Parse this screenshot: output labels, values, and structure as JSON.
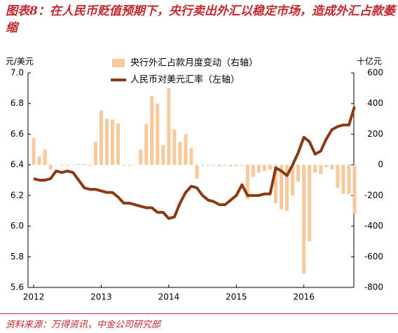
{
  "chart_data": {
    "type": "bar-line",
    "title": "图表8：在人民币贬值预期下，央行卖出外汇以稳定市场，造成外汇占款萎缩",
    "y_label": "元/美元",
    "y2_label": "十亿元",
    "source": "资料来源：万得资讯，中金公司研究部",
    "categories": [
      "2012",
      null,
      null,
      null,
      null,
      null,
      null,
      null,
      null,
      null,
      null,
      null,
      "2013",
      null,
      null,
      null,
      null,
      null,
      null,
      null,
      null,
      null,
      null,
      null,
      "2014",
      null,
      null,
      null,
      null,
      null,
      null,
      null,
      null,
      null,
      null,
      null,
      "2015",
      null,
      null,
      null,
      null,
      null,
      null,
      null,
      null,
      null,
      null,
      null,
      "2016",
      null,
      null,
      null,
      null,
      null,
      null,
      null,
      null,
      null
    ],
    "ylim": [
      5.6,
      7.0
    ],
    "yticks": [
      {
        "value": 7.0,
        "label": "7.0"
      },
      6.8,
      6.6,
      6.4,
      6.2,
      {
        "value": 6.0,
        "label": "6.0"
      },
      5.8,
      5.6
    ],
    "y2lim": [
      -800,
      600
    ],
    "y2ticks": [
      600,
      400,
      200,
      0,
      -200,
      -400,
      -600,
      -800
    ],
    "legend": "top-left",
    "series": [
      {
        "name": "央行外汇占款月度变动（右轴）",
        "type": "bar",
        "axis": "y2",
        "color": "#f9c89b",
        "values": [
          175,
          55,
          100,
          -30,
          0,
          -5,
          -5,
          -2,
          5,
          5,
          -5,
          150,
          355,
          300,
          295,
          270,
          -5,
          -5,
          0,
          100,
          265,
          450,
          400,
          130,
          500,
          230,
          150,
          200,
          110,
          -90,
          -5,
          -5,
          -5,
          -10,
          -5,
          -10,
          -10,
          -5,
          -225,
          -80,
          -50,
          -40,
          -30,
          -250,
          -290,
          -300,
          -200,
          -110,
          -710,
          -500,
          -50,
          -60,
          -15,
          -30,
          -150,
          -190,
          -190,
          -320
        ]
      },
      {
        "name": "人民币对美元汇率（左轴）",
        "type": "line",
        "axis": "y",
        "color": "#8b3a14",
        "values": [
          6.31,
          6.3,
          6.3,
          6.31,
          6.36,
          6.35,
          6.36,
          6.35,
          6.3,
          6.25,
          6.24,
          6.24,
          6.23,
          6.22,
          6.22,
          6.19,
          6.15,
          6.15,
          6.14,
          6.13,
          6.12,
          6.12,
          6.09,
          6.09,
          6.05,
          6.06,
          6.15,
          6.22,
          6.26,
          6.25,
          6.2,
          6.17,
          6.16,
          6.14,
          6.14,
          6.17,
          6.2,
          6.27,
          6.2,
          6.2,
          6.2,
          6.21,
          6.21,
          6.38,
          6.36,
          6.33,
          6.4,
          6.48,
          6.58,
          6.55,
          6.47,
          6.49,
          6.57,
          6.63,
          6.65,
          6.66,
          6.66,
          6.78
        ]
      }
    ]
  }
}
